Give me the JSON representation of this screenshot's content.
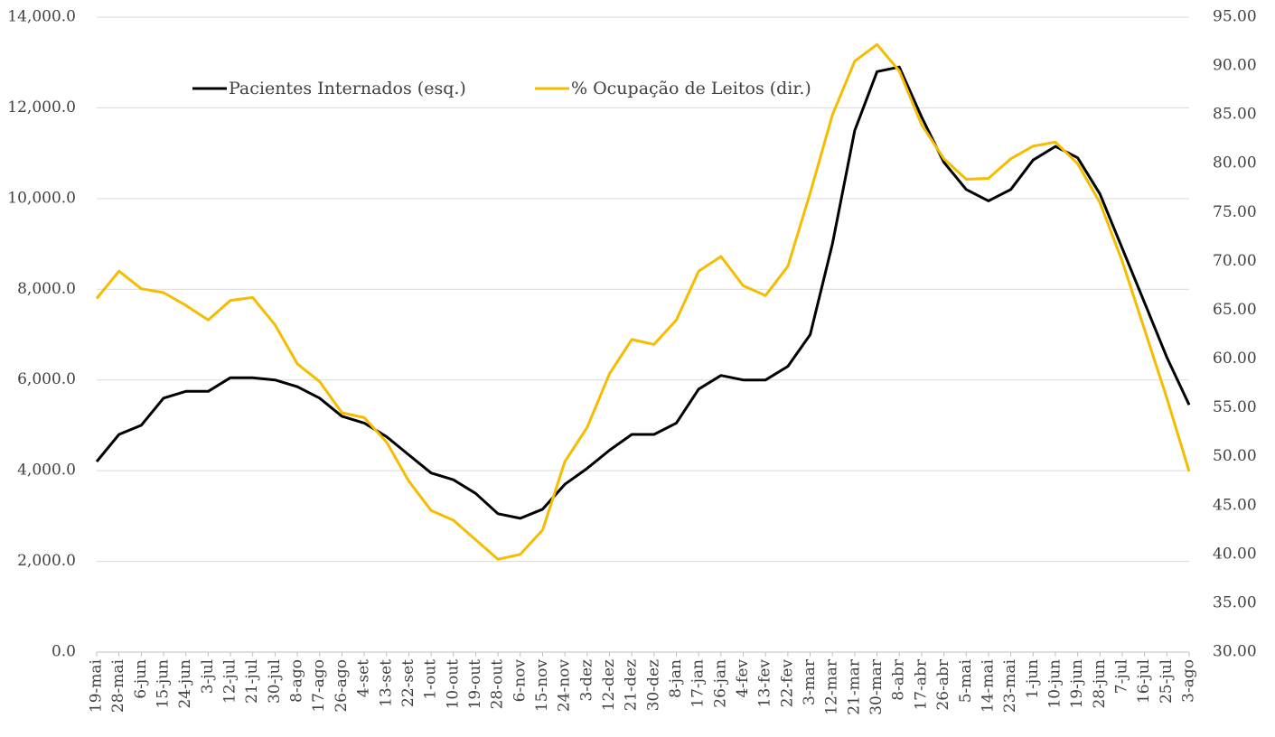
{
  "chart_data": {
    "type": "line",
    "categories": [
      "19-mai",
      "28-mai",
      "6-jun",
      "15-jun",
      "24-jun",
      "3-jul",
      "12-jul",
      "21-jul",
      "30-jul",
      "8-ago",
      "17-ago",
      "26-ago",
      "4-set",
      "13-set",
      "22-set",
      "1-out",
      "10-out",
      "19-out",
      "28-out",
      "6-nov",
      "15-nov",
      "24-nov",
      "3-dez",
      "12-dez",
      "21-dez",
      "30-dez",
      "8-jan",
      "17-jan",
      "26-jan",
      "4-fev",
      "13-fev",
      "22-fev",
      "3-mar",
      "12-mar",
      "21-mar",
      "30-mar",
      "8-abr",
      "17-abr",
      "26-abr",
      "5-mai",
      "14-mai",
      "23-mai",
      "1-jun",
      "10-jun",
      "19-jun",
      "28-jun",
      "7-jul",
      "16-jul",
      "25-jul",
      "3-ago"
    ],
    "series": [
      {
        "name": "Pacientes Internados (esq.)",
        "color": "#000000",
        "values": [
          4200,
          4800,
          5000,
          5600,
          5750,
          5750,
          6050,
          6050,
          6000,
          5850,
          5600,
          5200,
          5050,
          4750,
          4350,
          3950,
          3800,
          3500,
          3050,
          2950,
          3150,
          3700,
          4050,
          4450,
          4800,
          4800,
          5050,
          5800,
          6100,
          6000,
          6000,
          6300,
          7000,
          9000,
          11500,
          12800,
          12900,
          11800,
          10800,
          10200,
          9950,
          10200,
          10850,
          11150,
          10900,
          10100,
          8900,
          7700,
          6500,
          5450
        ]
      },
      {
        "name": "% Ocupação de Leitos (dir.)",
        "color": "#f5bc00",
        "axis": "y2",
        "values": [
          66.2,
          69.0,
          67.2,
          66.8,
          65.5,
          64.0,
          66.0,
          66.3,
          63.5,
          59.5,
          57.7,
          54.5,
          54.0,
          51.5,
          47.5,
          44.5,
          43.5,
          41.5,
          39.5,
          40.0,
          42.5,
          49.5,
          53.0,
          58.5,
          62.0,
          61.5,
          64.0,
          69.0,
          70.5,
          67.5,
          66.5,
          69.5,
          77.0,
          85.0,
          90.5,
          92.2,
          89.5,
          84.0,
          80.5,
          78.4,
          78.5,
          80.5,
          81.8,
          82.2,
          80.0,
          76.0,
          70.0,
          63.0,
          56.0,
          48.5
        ]
      }
    ],
    "ylim": [
      0,
      14000
    ],
    "yticks": [
      {
        "value": 0,
        "label": "0.0"
      },
      {
        "value": 2000,
        "label": "2,000.0"
      },
      {
        "value": 4000,
        "label": "4,000.0"
      },
      {
        "value": 6000,
        "label": "6,000.0"
      },
      {
        "value": 8000,
        "label": "8,000.0"
      },
      {
        "value": 10000,
        "label": "10,000.0"
      },
      {
        "value": 12000,
        "label": "12,000.0"
      },
      {
        "value": 14000,
        "label": "14,000.0"
      }
    ],
    "y2lim": [
      30,
      95
    ],
    "y2ticks": [
      {
        "value": 30,
        "label": "30.00"
      },
      {
        "value": 35,
        "label": "35.00"
      },
      {
        "value": 40,
        "label": "40.00"
      },
      {
        "value": 45,
        "label": "45.00"
      },
      {
        "value": 50,
        "label": "50.00"
      },
      {
        "value": 55,
        "label": "55.00"
      },
      {
        "value": 60,
        "label": "60.00"
      },
      {
        "value": 65,
        "label": "65.00"
      },
      {
        "value": 70,
        "label": "70.00"
      },
      {
        "value": 75,
        "label": "75.00"
      },
      {
        "value": 80,
        "label": "80.00"
      },
      {
        "value": 85,
        "label": "85.00"
      },
      {
        "value": 90,
        "label": "90.00"
      },
      {
        "value": 95,
        "label": "95.00"
      }
    ],
    "grid": true
  }
}
